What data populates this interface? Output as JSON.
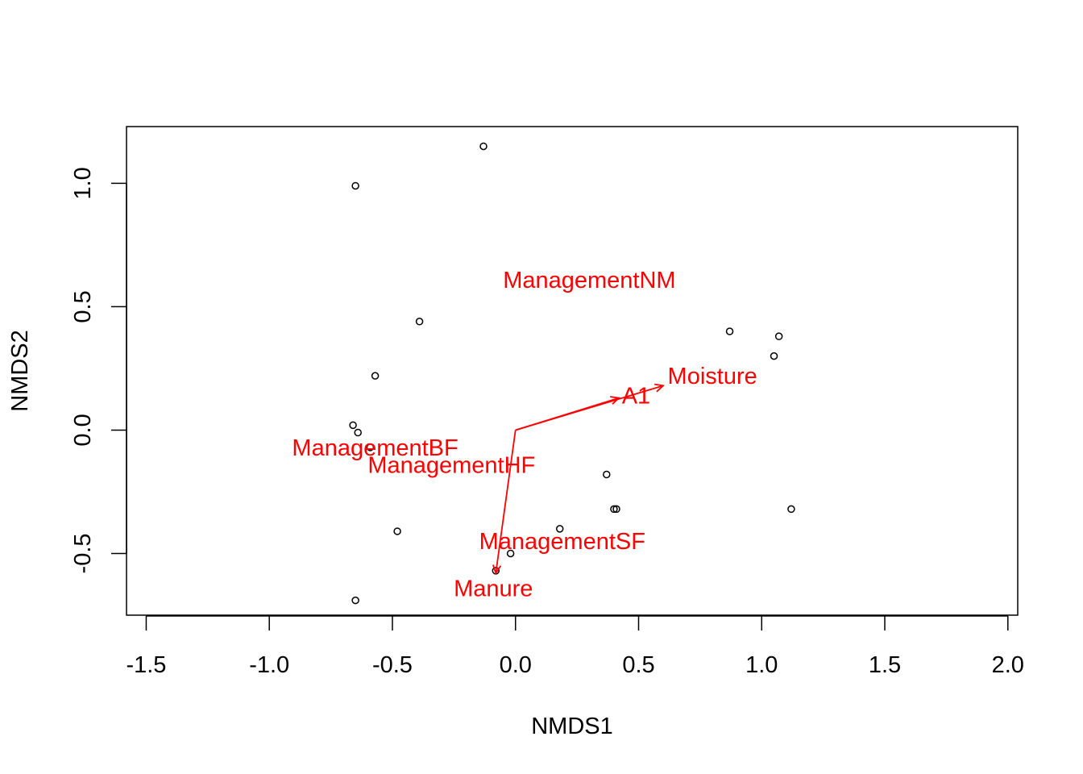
{
  "chart_data": {
    "type": "scatter",
    "xlabel": "NMDS1",
    "ylabel": "NMDS2",
    "xlim": [
      -1.58,
      2.04
    ],
    "ylim": [
      -0.75,
      1.23
    ],
    "x_ticks": [
      -1.5,
      -1.0,
      -0.5,
      0.0,
      0.5,
      1.0,
      1.5,
      2.0
    ],
    "x_tick_labels": [
      "-1.5",
      "-1.0",
      "-0.5",
      "0.0",
      "0.5",
      "1.0",
      "1.5",
      "2.0"
    ],
    "y_ticks": [
      -0.5,
      0.0,
      0.5,
      1.0
    ],
    "y_tick_labels": [
      "-0.5",
      "0.0",
      "0.5",
      "1.0"
    ],
    "grid": false,
    "legend": "none",
    "points": [
      {
        "x": -0.13,
        "y": 1.15
      },
      {
        "x": -0.65,
        "y": 0.99
      },
      {
        "x": -0.39,
        "y": 0.44
      },
      {
        "x": -0.57,
        "y": 0.22
      },
      {
        "x": -0.66,
        "y": 0.02
      },
      {
        "x": -0.64,
        "y": -0.01
      },
      {
        "x": -0.59,
        "y": -0.07
      },
      {
        "x": -0.48,
        "y": -0.41
      },
      {
        "x": -0.65,
        "y": -0.69
      },
      {
        "x": -0.08,
        "y": -0.57
      },
      {
        "x": -0.02,
        "y": -0.5
      },
      {
        "x": 0.18,
        "y": -0.4
      },
      {
        "x": 0.37,
        "y": -0.18
      },
      {
        "x": 0.4,
        "y": -0.32
      },
      {
        "x": 0.41,
        "y": -0.32
      },
      {
        "x": 0.87,
        "y": 0.4
      },
      {
        "x": 1.05,
        "y": 0.3
      },
      {
        "x": 1.07,
        "y": 0.38
      },
      {
        "x": 1.12,
        "y": -0.32
      }
    ],
    "vectors": [
      {
        "label": "Moisture",
        "x": 0.6,
        "y": 0.18,
        "label_x": 0.8,
        "label_y": 0.22
      },
      {
        "label": "A1",
        "x": 0.42,
        "y": 0.13,
        "label_x": 0.49,
        "label_y": 0.14
      },
      {
        "label": "Manure",
        "x": -0.08,
        "y": -0.58,
        "label_x": -0.09,
        "label_y": -0.64
      }
    ],
    "centroid_labels": [
      {
        "label": "ManagementNM",
        "x": 0.3,
        "y": 0.61
      },
      {
        "label": "ManagementBF",
        "x": -0.57,
        "y": -0.07
      },
      {
        "label": "ManagementHF",
        "x": -0.26,
        "y": -0.14
      },
      {
        "label": "ManagementSF",
        "x": 0.19,
        "y": -0.45
      }
    ],
    "colors": {
      "points": "#000000",
      "vectors": "#ff0000",
      "axes": "#000000"
    }
  }
}
